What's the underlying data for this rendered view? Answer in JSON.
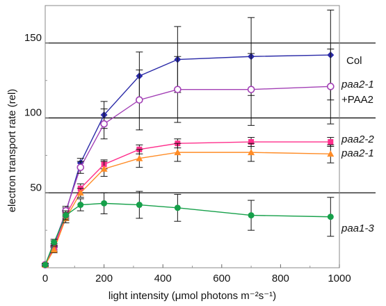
{
  "chart_data": {
    "type": "line",
    "xlabel": "light intensity (μmol photons m⁻²s⁻¹)",
    "ylabel": "electron transport rate (rel)",
    "xlim": [
      0,
      1000
    ],
    "ylim": [
      0,
      175
    ],
    "x_ticks": [
      "0",
      "200",
      "400",
      "600",
      "800",
      "1000"
    ],
    "y_ticks": [
      "50",
      "100",
      "150"
    ],
    "x": [
      0,
      30,
      70,
      120,
      200,
      320,
      450,
      700,
      970
    ],
    "series": [
      {
        "name": "Col",
        "label_lines": [
          "Col"
        ],
        "color": "#2b2ba8",
        "marker": "diamond",
        "values": [
          2,
          16,
          37,
          70,
          102,
          128,
          139,
          141,
          142
        ],
        "err": [
          1,
          2,
          3,
          3,
          9,
          16,
          22,
          26,
          30
        ]
      },
      {
        "name": "paa2-1 +PAA2",
        "label_lines": [
          "paa2-1",
          "+PAA2"
        ],
        "color": "#a23fb5",
        "marker": "open-circle",
        "values": [
          2,
          14,
          38,
          67,
          96,
          112,
          119,
          119,
          121
        ],
        "err": [
          1,
          2,
          3,
          4,
          10,
          20,
          22,
          24,
          25
        ]
      },
      {
        "name": "paa2-2",
        "label_lines": [
          "paa2-2"
        ],
        "color": "#ff2f8c",
        "marker": "square",
        "values": [
          2,
          13,
          35,
          53,
          69,
          79,
          83,
          84,
          84
        ],
        "err": [
          1,
          2,
          2,
          3,
          3,
          3,
          3,
          3,
          3
        ]
      },
      {
        "name": "paa2-1",
        "label_lines": [
          "paa2-1"
        ],
        "color": "#ff8c26",
        "marker": "triangle",
        "values": [
          2,
          12,
          33,
          50,
          66,
          73,
          77,
          77,
          76
        ],
        "err": [
          1,
          2,
          3,
          3,
          5,
          6,
          6,
          6,
          6
        ]
      },
      {
        "name": "paa1-3",
        "label_lines": [
          "paa1-3"
        ],
        "color": "#16a04a",
        "marker": "filled-circle",
        "values": [
          2,
          17,
          35,
          42,
          43,
          42,
          40,
          35,
          34
        ],
        "err": [
          1,
          2,
          3,
          4,
          7,
          9,
          9,
          10,
          13
        ]
      }
    ],
    "hlines": [
      50,
      100,
      150
    ],
    "grid": false
  }
}
